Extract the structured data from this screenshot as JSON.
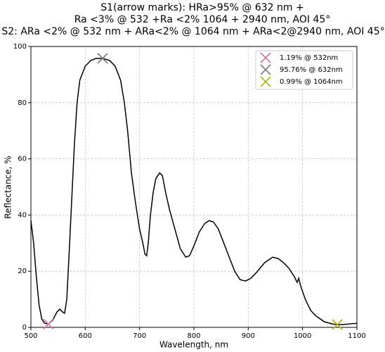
{
  "chart_data": {
    "type": "line",
    "title": [
      "S1(arrow marks): HRa>95% @ 632 nm +",
      "Ra <3% @ 532 +Ra <2% 1064 + 2940 nm, AOI 45°",
      "S2: ARa <2% @ 532 nm + ARa<2% @ 1064 nm + ARa<2@2940 nm, AOI 45°"
    ],
    "x_label": "Wavelength, nm",
    "y_label": "Reflectance, %",
    "xlim": [
      500,
      1100
    ],
    "ylim": [
      0,
      100
    ],
    "xticks": [
      500,
      600,
      700,
      800,
      900,
      1000,
      1100
    ],
    "yticks": [
      0,
      20,
      40,
      60,
      80,
      100
    ],
    "grid": true,
    "legend": "upper right",
    "series": [
      {
        "color": "#000000",
        "x": [
          500,
          505,
          510,
          515,
          520,
          525,
          532,
          540,
          548,
          553,
          558,
          562,
          566,
          570,
          575,
          580,
          585,
          590,
          600,
          610,
          620,
          632,
          645,
          655,
          665,
          672,
          678,
          685,
          692,
          700,
          706,
          710,
          713,
          716,
          720,
          725,
          730,
          737,
          742,
          748,
          755,
          765,
          775,
          785,
          792,
          800,
          810,
          820,
          828,
          836,
          845,
          855,
          865,
          875,
          885,
          895,
          905,
          915,
          930,
          945,
          955,
          965,
          975,
          985,
          990,
          993,
          996,
          1005,
          1015,
          1025,
          1040,
          1055,
          1064,
          1075,
          1090,
          1100
        ],
        "values": [
          38,
          30,
          18,
          8,
          3,
          1.5,
          1.19,
          2.5,
          5.5,
          6.5,
          5.5,
          5,
          10,
          25,
          45,
          65,
          80,
          88,
          93,
          95,
          95.7,
          95.76,
          95,
          93,
          88,
          80,
          70,
          55,
          45,
          35,
          30,
          26,
          25.5,
          30,
          40,
          48,
          53,
          55,
          54,
          48,
          42,
          35,
          28,
          25,
          25.5,
          29,
          34,
          37,
          38,
          37.5,
          35,
          30,
          25,
          20,
          17,
          16.5,
          17.5,
          19.5,
          23,
          25,
          24.5,
          23,
          21,
          18,
          16,
          17.5,
          15,
          10,
          6,
          4,
          2,
          1.2,
          0.99,
          1,
          1.3,
          1.4
        ]
      }
    ],
    "markers": [
      {
        "name": "1.19% @ 532nm",
        "color": "#cc79a7",
        "x": 532,
        "y": 1.19
      },
      {
        "name": "95.76% @ 632nm",
        "color": "#808080",
        "x": 632,
        "y": 95.76
      },
      {
        "name": "0.99% @ 1064nm",
        "color": "#b5b520",
        "x": 1064,
        "y": 0.99
      }
    ]
  }
}
